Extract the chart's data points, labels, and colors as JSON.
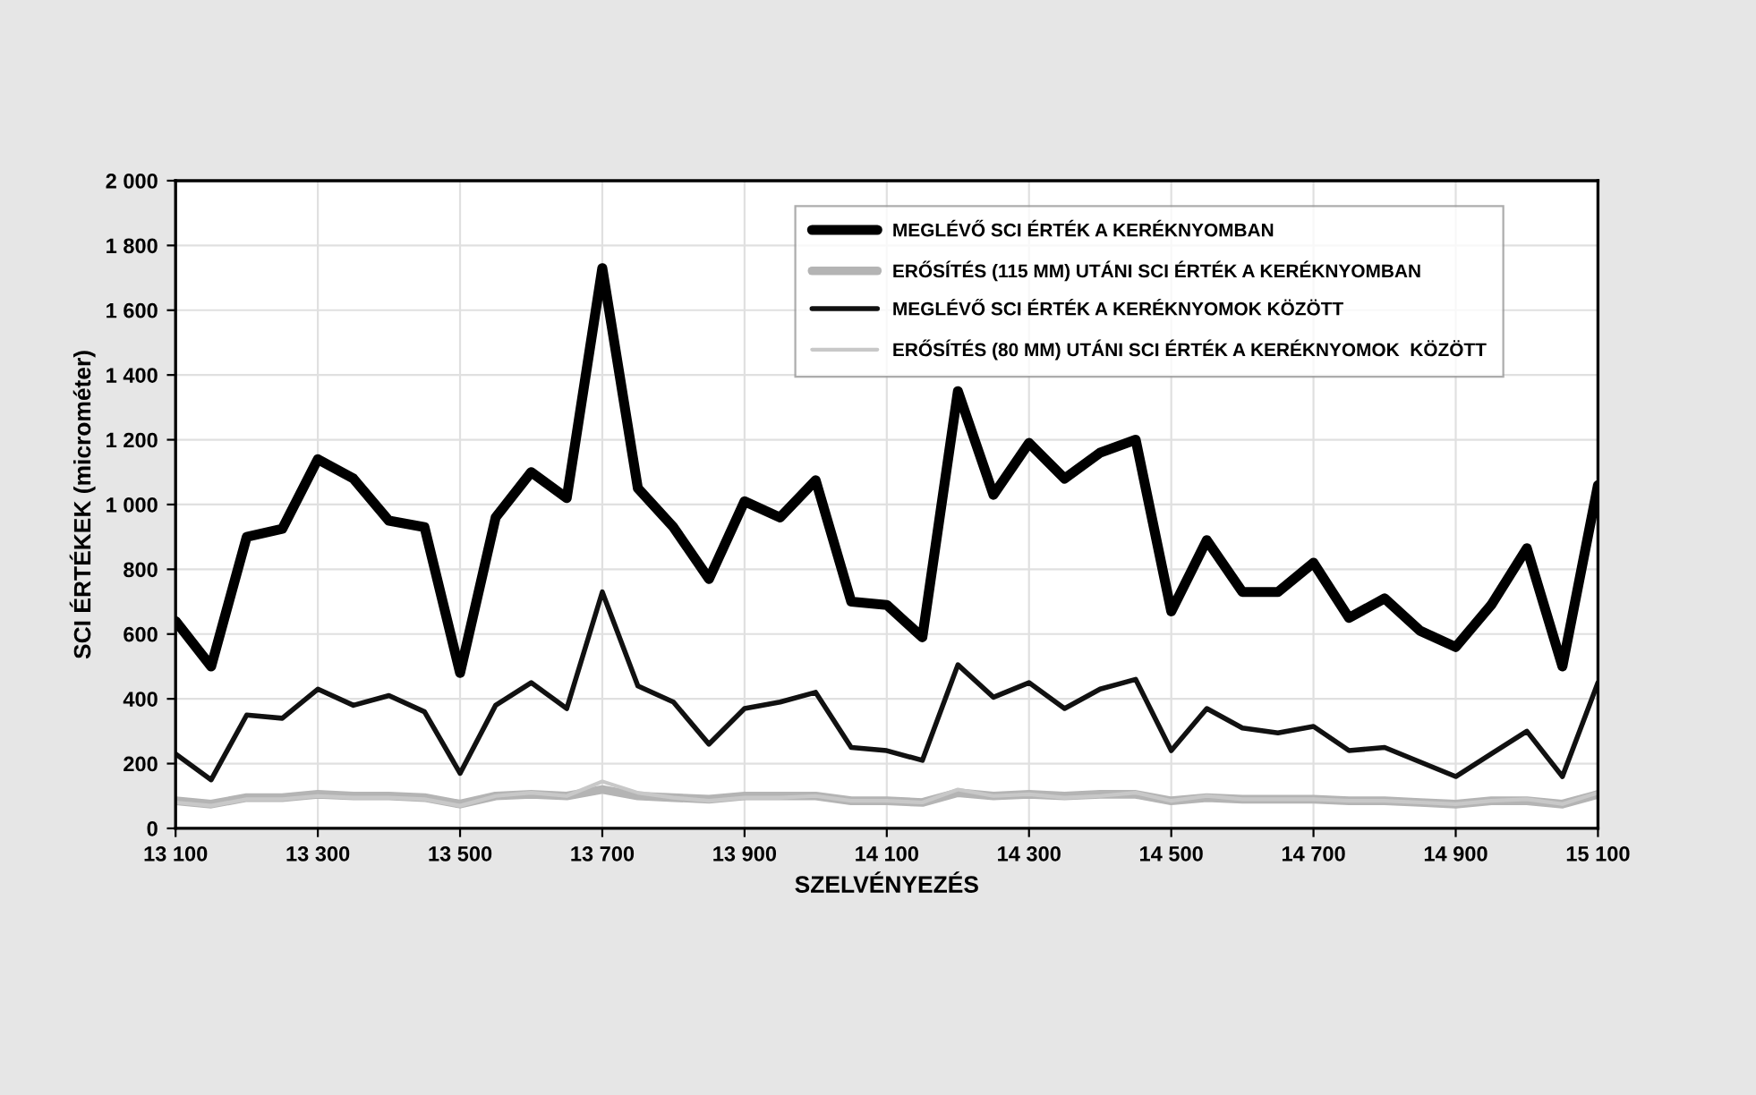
{
  "chart_data": {
    "type": "line",
    "xlabel": "SZELVÉNYEZÉS",
    "ylabel": "SCI ÉRTÉKEK (microméter)",
    "x": [
      13100,
      13150,
      13200,
      13250,
      13300,
      13350,
      13400,
      13450,
      13500,
      13550,
      13600,
      13650,
      13700,
      13750,
      13800,
      13850,
      13900,
      13950,
      14000,
      14050,
      14100,
      14150,
      14200,
      14250,
      14300,
      14350,
      14400,
      14450,
      14500,
      14550,
      14600,
      14650,
      14700,
      14750,
      14800,
      14850,
      14900,
      14950,
      15000,
      15050,
      15100
    ],
    "series": [
      {
        "name": "MEGLÉVŐ SCI ÉRTÉK A KERÉKNYOMBAN",
        "color": "#000000",
        "values": [
          640,
          500,
          900,
          925,
          1140,
          1080,
          950,
          930,
          480,
          960,
          1100,
          1020,
          1730,
          1050,
          930,
          770,
          1010,
          960,
          1075,
          700,
          690,
          590,
          1350,
          1030,
          1190,
          1080,
          1160,
          1200,
          670,
          890,
          730,
          730,
          820,
          650,
          710,
          610,
          560,
          690,
          865,
          500,
          1060
        ]
      },
      {
        "name": "ERŐSÍTÉS (115 MM) UTÁNI SCI ÉRTÉK A KERÉKNYOMBAN",
        "color": "#b4b4b4",
        "values": [
          85,
          75,
          95,
          95,
          105,
          100,
          100,
          95,
          75,
          100,
          105,
          100,
          120,
          100,
          95,
          90,
          100,
          100,
          100,
          85,
          85,
          80,
          110,
          100,
          105,
          100,
          105,
          105,
          85,
          95,
          90,
          90,
          90,
          85,
          85,
          80,
          75,
          85,
          85,
          75,
          105
        ]
      },
      {
        "name": "MEGLÉVŐ SCI ÉRTÉK A KERÉKNYOMOK KÖZÖTT",
        "color": "#111111",
        "values": [
          230,
          150,
          350,
          340,
          430,
          380,
          410,
          360,
          170,
          380,
          450,
          370,
          730,
          440,
          390,
          260,
          370,
          390,
          420,
          250,
          240,
          210,
          505,
          405,
          450,
          370,
          430,
          460,
          240,
          370,
          310,
          295,
          315,
          240,
          250,
          205,
          160,
          230,
          300,
          160,
          450
        ]
      },
      {
        "name": "ERŐSÍTÉS (80 MM) UTÁNI SCI ÉRTÉK A KERÉKNYOMOK  KÖZÖTT",
        "color": "#c8c8c8",
        "values": [
          80,
          70,
          90,
          90,
          100,
          95,
          95,
          90,
          70,
          100,
          110,
          100,
          145,
          110,
          95,
          85,
          95,
          95,
          100,
          85,
          85,
          80,
          120,
          100,
          105,
          95,
          100,
          110,
          85,
          100,
          90,
          90,
          90,
          85,
          85,
          80,
          75,
          85,
          90,
          75,
          110
        ]
      }
    ],
    "xlim": [
      13100,
      15100
    ],
    "xticks": [
      {
        "value": 13100,
        "label": "13 100"
      },
      {
        "value": 13300,
        "label": "13 300"
      },
      {
        "value": 13500,
        "label": "13 500"
      },
      {
        "value": 13700,
        "label": "13 700"
      },
      {
        "value": 13900,
        "label": "13 900"
      },
      {
        "value": 14100,
        "label": "14 100"
      },
      {
        "value": 14300,
        "label": "14 300"
      },
      {
        "value": 14500,
        "label": "14 500"
      },
      {
        "value": 14700,
        "label": "14 700"
      },
      {
        "value": 14900,
        "label": "14 900"
      },
      {
        "value": 15100,
        "label": "15 100"
      }
    ],
    "ylim": [
      0,
      2000
    ],
    "yticks": [
      0,
      200,
      400,
      600,
      800,
      {
        "value": 1000,
        "label": "1 000"
      },
      {
        "value": 1200,
        "label": "1 200"
      },
      {
        "value": 1400,
        "label": "1 400"
      },
      {
        "value": 1600,
        "label": "1 600"
      },
      {
        "value": 1800,
        "label": "1 800"
      },
      {
        "value": 2000,
        "label": "2 000"
      }
    ],
    "grid": true,
    "legend": "top right",
    "marker": "none",
    "line_style": "solid"
  }
}
